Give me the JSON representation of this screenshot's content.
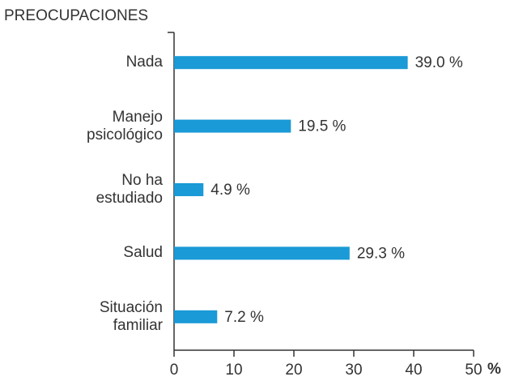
{
  "chart_data": {
    "type": "bar",
    "orientation": "horizontal",
    "title": "PREOCUPACIONES",
    "x_label": "%",
    "categories": [
      "Nada",
      "Manejo psicológico",
      "No ha estudiado",
      "Salud",
      "Situación familiar"
    ],
    "values": [
      39.0,
      19.5,
      4.9,
      29.3,
      7.2
    ],
    "value_labels": [
      "39.0 %",
      "19.5 %",
      "4.9 %",
      "29.3 %",
      "7.2 %"
    ],
    "color": "#1a9ad6",
    "xlim": [
      0,
      50
    ],
    "xticks": [
      0,
      10,
      20,
      30,
      40,
      50
    ],
    "grid": false
  }
}
